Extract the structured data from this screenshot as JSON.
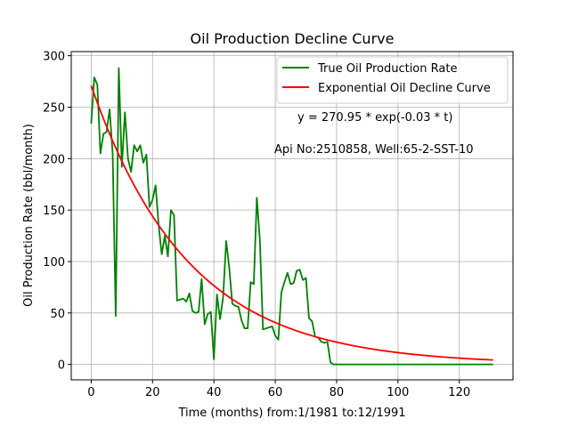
{
  "chart_data": {
    "type": "line",
    "title": "Oil Production Decline Curve",
    "xlabel": "Time (months) from:1/1981 to:12/1991",
    "ylabel": "Oil Production Rate (bbl/month)",
    "xlim": [
      -6.5,
      137.5
    ],
    "ylim": [
      -15,
      304
    ],
    "xticks": [
      0,
      20,
      40,
      60,
      80,
      100,
      120
    ],
    "yticks": [
      0,
      50,
      100,
      150,
      200,
      250,
      300
    ],
    "grid": true,
    "legend_position": "top-right",
    "annotations": [
      "y = 270.95 * exp(-0.03 * t)",
      "Api No:2510858, Well:65-2-SST-10"
    ],
    "series": [
      {
        "name": "True Oil Production Rate",
        "color": "#008000",
        "x": [
          0,
          1,
          2,
          3,
          4,
          5,
          6,
          7,
          8,
          9,
          10,
          11,
          12,
          13,
          14,
          15,
          16,
          17,
          18,
          19,
          20,
          21,
          22,
          23,
          24,
          25,
          26,
          27,
          28,
          29,
          30,
          31,
          32,
          33,
          34,
          35,
          36,
          37,
          38,
          39,
          40,
          41,
          42,
          43,
          44,
          45,
          46,
          47,
          48,
          49,
          50,
          51,
          52,
          53,
          54,
          55,
          56,
          57,
          58,
          59,
          60,
          61,
          62,
          63,
          64,
          65,
          66,
          67,
          68,
          69,
          70,
          71,
          72,
          73,
          74,
          75,
          76,
          77,
          78,
          79,
          80,
          81,
          82,
          83,
          84,
          85,
          86,
          87,
          88,
          89,
          90,
          91,
          92,
          93,
          94,
          95,
          96,
          97,
          98,
          99,
          100,
          101,
          102,
          103,
          104,
          105,
          106,
          107,
          108,
          109,
          110,
          111,
          112,
          113,
          114,
          115,
          116,
          117,
          118,
          119,
          120,
          121,
          122,
          123,
          124,
          125,
          126,
          127,
          128,
          129,
          130,
          131
        ],
        "values": [
          234,
          279,
          272,
          205,
          224,
          226,
          248,
          205,
          47,
          288,
          192,
          245,
          200,
          187,
          213,
          207,
          213,
          196,
          204,
          153,
          160,
          174,
          135,
          107,
          125,
          105,
          150,
          145,
          62,
          63,
          64,
          61,
          69,
          52,
          50,
          51,
          83,
          39,
          49,
          51,
          5,
          68,
          44,
          65,
          120,
          94,
          59,
          57,
          56,
          43,
          35,
          35,
          80,
          78,
          162,
          120,
          34,
          35,
          36,
          37,
          28,
          24,
          70,
          80,
          89,
          78,
          79,
          91,
          92,
          82,
          84,
          45,
          42,
          27,
          26,
          22,
          21,
          22,
          2,
          0,
          0,
          0,
          0,
          0,
          0,
          0,
          0,
          0,
          0,
          0,
          0,
          0,
          0,
          0,
          0,
          0,
          0,
          0,
          0,
          0,
          0,
          0,
          0,
          0,
          0,
          0,
          0,
          0,
          0,
          0,
          0,
          0,
          0,
          0,
          0,
          0,
          0,
          0,
          0,
          0,
          0,
          0,
          0,
          0,
          0,
          0,
          0,
          0,
          0,
          0,
          0,
          0
        ]
      },
      {
        "name": "Exponential Oil Decline Curve",
        "color": "#ff0000",
        "function": {
          "a": 270.95,
          "b": 0.0316,
          "t_start": 0,
          "t_end": 131
        }
      }
    ]
  }
}
